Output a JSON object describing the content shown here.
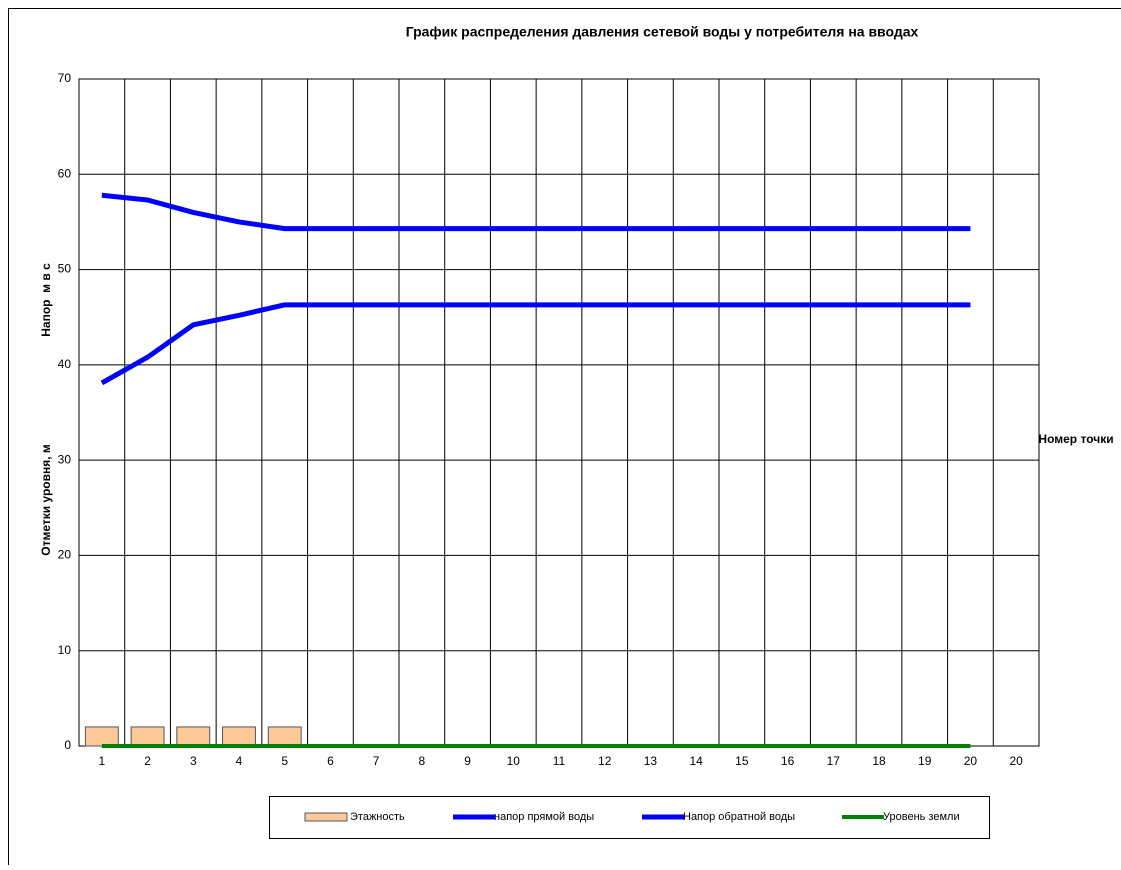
{
  "chart_data": {
    "type": "bar-line",
    "title": "График распределения давления сетевой воды у потребителя на вводах",
    "y_label_lower": "Отметки уровня, м",
    "y_label_upper": "Напор  м в с",
    "x_label": "Номер точки",
    "categories": [
      "1",
      "2",
      "3",
      "4",
      "5",
      "6",
      "7",
      "8",
      "9",
      "10",
      "11",
      "12",
      "13",
      "14",
      "15",
      "16",
      "17",
      "18",
      "19",
      "20",
      "20"
    ],
    "ylim": [
      0,
      70
    ],
    "yticks": [
      0,
      10,
      20,
      30,
      40,
      50,
      60,
      70
    ],
    "grid": true,
    "series": [
      {
        "name": "Этажность",
        "type": "bar",
        "color": "#fcc998",
        "values": [
          2,
          2,
          2,
          2,
          2,
          null,
          null,
          null,
          null,
          null,
          null,
          null,
          null,
          null,
          null,
          null,
          null,
          null,
          null,
          null,
          null
        ]
      },
      {
        "name": "напор прямой воды",
        "type": "line",
        "color": "#0000ff",
        "values": [
          57.8,
          57.3,
          56.0,
          55.0,
          54.3,
          54.3,
          54.3,
          54.3,
          54.3,
          54.3,
          54.3,
          54.3,
          54.3,
          54.3,
          54.3,
          54.3,
          54.3,
          54.3,
          54.3,
          54.3,
          null
        ]
      },
      {
        "name": "Напор обратной воды",
        "type": "line",
        "color": "#0000ff",
        "values": [
          38.1,
          40.8,
          44.2,
          45.2,
          46.3,
          46.3,
          46.3,
          46.3,
          46.3,
          46.3,
          46.3,
          46.3,
          46.3,
          46.3,
          46.3,
          46.3,
          46.3,
          46.3,
          46.3,
          46.3,
          null
        ]
      },
      {
        "name": "Уровень земли",
        "type": "line",
        "color": "#008000",
        "values": [
          0,
          0,
          0,
          0,
          0,
          0,
          0,
          0,
          0,
          0,
          0,
          0,
          0,
          0,
          0,
          0,
          0,
          0,
          0,
          0,
          null
        ]
      }
    ]
  }
}
